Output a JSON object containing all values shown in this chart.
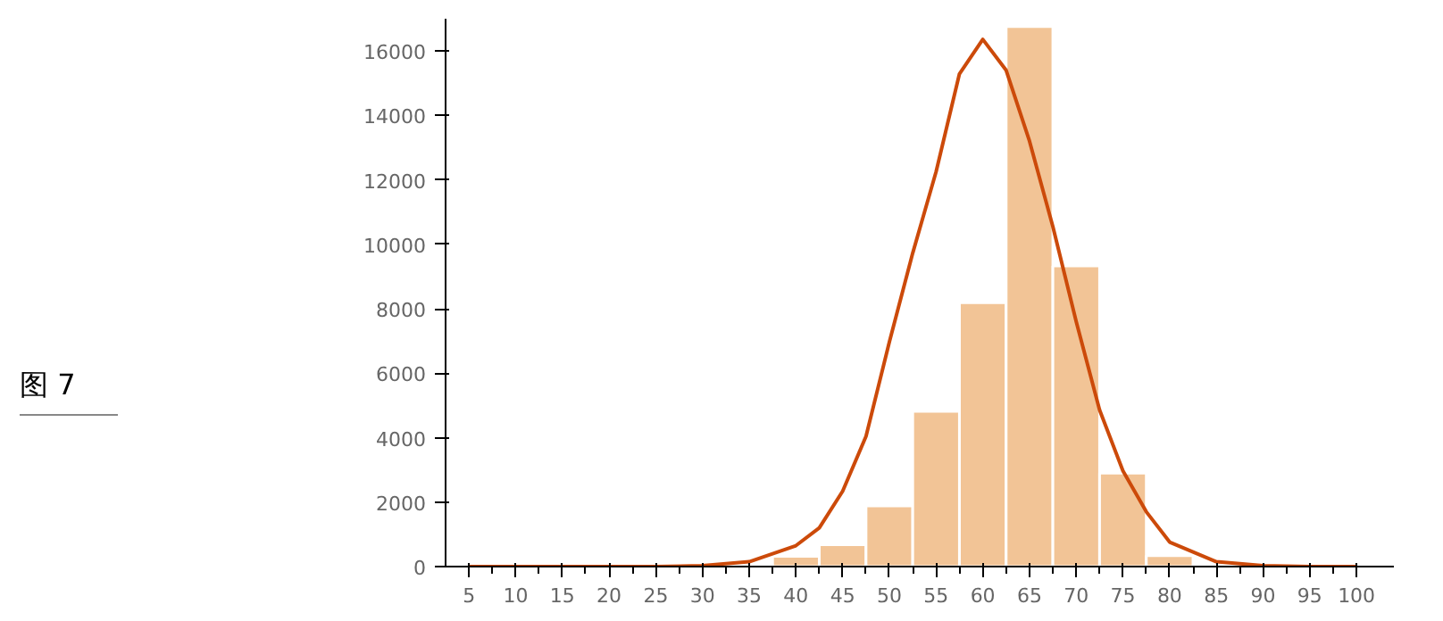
{
  "chart_data": {
    "type": "histogram",
    "color": "#f2c496",
    "bins": [
      2.5,
      7.5,
      12.5,
      17.5,
      22.5,
      27.5,
      32.5,
      37.5,
      42.5,
      47.5,
      52.5,
      57.5,
      62.5,
      67.5,
      72.5,
      77.5,
      82.5,
      87.5,
      92.5,
      97.5,
      102.5
    ],
    "values": [
      20,
      20,
      20,
      20,
      30,
      30,
      80,
      320,
      680,
      1880,
      4820,
      8190,
      16760,
      9330,
      2900,
      340,
      null,
      50,
      60,
      60
    ],
    "series": [
      {
        "type": "line",
        "color": "#cc4a0a",
        "x": [
          5,
          10,
          15,
          20,
          25,
          30,
          35,
          40,
          42.5,
          45,
          47.5,
          50,
          52.5,
          55,
          57.5,
          60,
          62.5,
          65,
          67.5,
          70,
          72.5,
          75,
          77.5,
          80,
          85,
          90,
          95,
          100
        ],
        "values": [
          0,
          0,
          0,
          0,
          0,
          30,
          150,
          650,
          1200,
          2340,
          4040,
          6970,
          9730,
          12250,
          15290,
          16360,
          15400,
          13200,
          10550,
          7600,
          4860,
          2970,
          1700,
          760,
          150,
          30,
          0,
          0
        ]
      }
    ],
    "xlim": [
      2.5,
      104
    ],
    "xticks": [
      5,
      10,
      15,
      20,
      25,
      30,
      35,
      40,
      45,
      50,
      55,
      60,
      65,
      70,
      75,
      80,
      85,
      90,
      95,
      100
    ],
    "ylim": [
      0,
      17000
    ],
    "yticks": [
      0,
      2000,
      4000,
      6000,
      8000,
      10000,
      12000,
      14000,
      16000
    ],
    "grid": false,
    "annotations": [
      "图 7"
    ]
  }
}
